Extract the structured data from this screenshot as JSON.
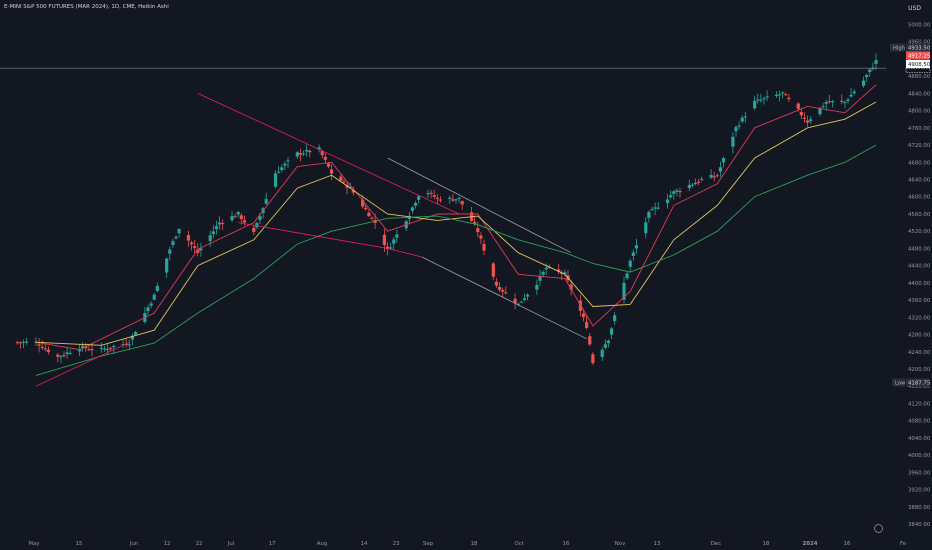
{
  "header": {
    "title": "E-MINI S&P 500 FUTURES (MAR 2024), 1D, CME, Heikin Ashi",
    "currency": "USD"
  },
  "colors": {
    "background": "#131722",
    "axis_text": "#9598a1",
    "up": "#26a69a",
    "down": "#ef5350",
    "ma_fast": "#e03a57",
    "ma_mid": "#e0c85a",
    "ma_slow": "#2e9e5a",
    "trendline_red": "#e91e63",
    "trendline_gray": "#9a9fb0",
    "high_line": "#a0a4b0"
  },
  "price_axis": {
    "ticks": [
      "5000.00",
      "4960.00",
      "4920.00",
      "4880.00",
      "4840.00",
      "4800.00",
      "4760.00",
      "4720.00",
      "4680.00",
      "4640.00",
      "4600.00",
      "4560.00",
      "4520.00",
      "4480.00",
      "4440.00",
      "4400.00",
      "4360.00",
      "4320.00",
      "4280.00",
      "4240.00",
      "4200.00",
      "4160.00",
      "4120.00",
      "4080.00",
      "4040.00",
      "4000.00",
      "3960.00",
      "3920.00",
      "3880.00",
      "3840.00"
    ],
    "high_label": "High",
    "high_value": "4933.50",
    "low_label": "Low",
    "low_value": "4187.75",
    "current_price": "4917.25",
    "secondary_price": "4908.50"
  },
  "time_axis": {
    "labels": [
      "May",
      "15",
      "Jun",
      "12",
      "22",
      "Jul",
      "17",
      "Aug",
      "14",
      "23",
      "Sep",
      "18",
      "Oct",
      "16",
      "Nov",
      "13",
      "Dec",
      "18",
      "2024",
      "16",
      "Fe"
    ]
  },
  "chart_data": {
    "type": "candlestick",
    "title": "E-MINI S&P 500 FUTURES (MAR 2024), 1D, CME, Heikin Ashi",
    "ylim": [
      3820,
      5020
    ],
    "grid": false,
    "price_points": [
      [
        "May 1",
        4262
      ],
      [
        "May 8",
        4228
      ],
      [
        "May 15",
        4250
      ],
      [
        "May 22",
        4245
      ],
      [
        "May 31",
        4262
      ],
      [
        "Jun 8",
        4370
      ],
      [
        "Jun 13",
        4478
      ],
      [
        "Jun 16",
        4528
      ],
      [
        "Jun 22",
        4470
      ],
      [
        "Jun 29",
        4540
      ],
      [
        "Jul 5",
        4560
      ],
      [
        "Jul 10",
        4515
      ],
      [
        "Jul 17",
        4655
      ],
      [
        "Jul 24",
        4700
      ],
      [
        "Jul 31",
        4710
      ],
      [
        "Aug 4",
        4655
      ],
      [
        "Aug 10",
        4620
      ],
      [
        "Aug 18",
        4540
      ],
      [
        "Aug 22",
        4475
      ],
      [
        "Aug 29",
        4560
      ],
      [
        "Sep 2",
        4620
      ],
      [
        "Sep 7",
        4595
      ],
      [
        "Sep 14",
        4595
      ],
      [
        "Sep 20",
        4520
      ],
      [
        "Sep 26",
        4395
      ],
      [
        "Oct 3",
        4350
      ],
      [
        "Oct 9",
        4400
      ],
      [
        "Oct 12",
        4435
      ],
      [
        "Oct 18",
        4420
      ],
      [
        "Oct 25",
        4300
      ],
      [
        "Oct 27",
        4215
      ],
      [
        "Nov 1",
        4270
      ],
      [
        "Nov 8",
        4450
      ],
      [
        "Nov 14",
        4560
      ],
      [
        "Nov 22",
        4610
      ],
      [
        "Dec 1",
        4640
      ],
      [
        "Dec 6",
        4650
      ],
      [
        "Dec 12",
        4760
      ],
      [
        "Dec 18",
        4820
      ],
      [
        "Dec 27",
        4840
      ],
      [
        "Jan 4",
        4775
      ],
      [
        "Jan 10",
        4820
      ],
      [
        "Jan 16",
        4820
      ],
      [
        "Jan 22",
        4870
      ],
      [
        "Jan 26",
        4915
      ]
    ],
    "moving_averages": [
      {
        "color": "#e03a57",
        "points": [
          [
            "May 1",
            4262
          ],
          [
            "May 15",
            4245
          ],
          [
            "Jun 8",
            4330
          ],
          [
            "Jun 22",
            4478
          ],
          [
            "Jul 10",
            4540
          ],
          [
            "Jul 24",
            4670
          ],
          [
            "Aug 4",
            4680
          ],
          [
            "Aug 22",
            4520
          ],
          [
            "Sep 7",
            4560
          ],
          [
            "Sep 20",
            4560
          ],
          [
            "Oct 3",
            4420
          ],
          [
            "Oct 18",
            4410
          ],
          [
            "Oct 27",
            4300
          ],
          [
            "Nov 8",
            4380
          ],
          [
            "Nov 22",
            4580
          ],
          [
            "Dec 6",
            4630
          ],
          [
            "Dec 18",
            4760
          ],
          [
            "Jan 4",
            4810
          ],
          [
            "Jan 16",
            4795
          ],
          [
            "Jan 26",
            4860
          ]
        ]
      },
      {
        "color": "#e0c85a",
        "points": [
          [
            "May 1",
            4262
          ],
          [
            "May 22",
            4255
          ],
          [
            "Jun 8",
            4290
          ],
          [
            "Jun 22",
            4440
          ],
          [
            "Jul 10",
            4500
          ],
          [
            "Jul 24",
            4620
          ],
          [
            "Aug 4",
            4650
          ],
          [
            "Aug 22",
            4560
          ],
          [
            "Sep 7",
            4545
          ],
          [
            "Sep 20",
            4555
          ],
          [
            "Oct 3",
            4470
          ],
          [
            "Oct 18",
            4420
          ],
          [
            "Oct 27",
            4345
          ],
          [
            "Nov 8",
            4350
          ],
          [
            "Nov 22",
            4500
          ],
          [
            "Dec 6",
            4580
          ],
          [
            "Dec 18",
            4690
          ],
          [
            "Jan 4",
            4760
          ],
          [
            "Jan 16",
            4780
          ],
          [
            "Jan 26",
            4820
          ]
        ]
      },
      {
        "color": "#2e9e5a",
        "points": [
          [
            "May 1",
            4185
          ],
          [
            "May 22",
            4230
          ],
          [
            "Jun 8",
            4260
          ],
          [
            "Jun 22",
            4330
          ],
          [
            "Jul 10",
            4410
          ],
          [
            "Jul 24",
            4490
          ],
          [
            "Aug 4",
            4520
          ],
          [
            "Aug 22",
            4550
          ],
          [
            "Sep 7",
            4555
          ],
          [
            "Sep 20",
            4535
          ],
          [
            "Oct 3",
            4500
          ],
          [
            "Oct 18",
            4470
          ],
          [
            "Oct 27",
            4445
          ],
          [
            "Nov 8",
            4425
          ],
          [
            "Nov 22",
            4465
          ],
          [
            "Dec 6",
            4520
          ],
          [
            "Dec 18",
            4600
          ],
          [
            "Jan 4",
            4650
          ],
          [
            "Jan 16",
            4680
          ],
          [
            "Jan 26",
            4720
          ]
        ]
      }
    ],
    "trendlines": [
      {
        "color": "#e91e63",
        "points": [
          [
            "May 1",
            4160
          ],
          [
            "May 31",
            4262
          ]
        ]
      },
      {
        "color": "#e91e63",
        "points": [
          [
            "Jul 5",
            4540
          ],
          [
            "Aug 22",
            4480
          ],
          [
            "Sep 2",
            4460
          ]
        ]
      },
      {
        "color": "#e91e63",
        "points": [
          [
            "Jun 22",
            4840
          ],
          [
            "Sep 14",
            4560
          ]
        ]
      },
      {
        "color": "#9a9fb0",
        "points": [
          [
            "Sep 2",
            4460
          ],
          [
            "Oct 25",
            4270
          ]
        ]
      },
      {
        "color": "#9a9fb0",
        "points": [
          [
            "Aug 22",
            4690
          ],
          [
            "Oct 20",
            4470
          ]
        ]
      }
    ],
    "high_line": 4933.5
  }
}
